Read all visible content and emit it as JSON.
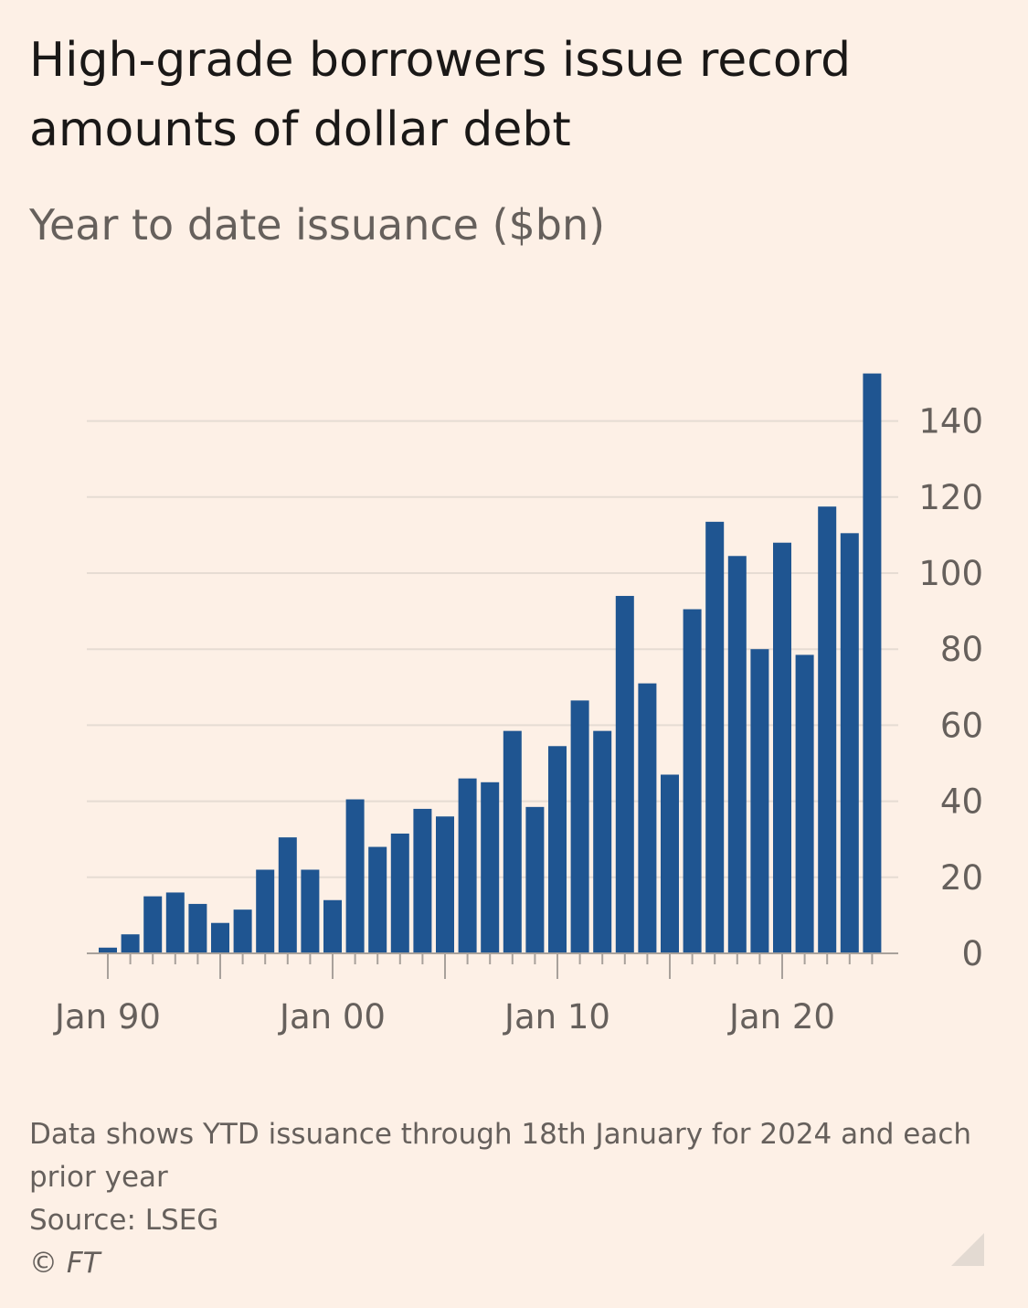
{
  "header": {
    "title": "High-grade borrowers issue record amounts of dollar debt",
    "subtitle": "Year to date issuance ($bn)"
  },
  "footer": {
    "note": "Data shows YTD issuance through 18th January for 2024 and each prior year",
    "source": "Source: LSEG",
    "copyright": "© FT"
  },
  "colors": {
    "bar": "#1f5591",
    "gridline": "#e6dcd3",
    "axis": "#a8a19b",
    "background": "#fdf0e6"
  },
  "chart_data": {
    "type": "bar",
    "title": "High-grade borrowers issue record amounts of dollar debt",
    "subtitle": "Year to date issuance ($bn)",
    "x": [
      1990,
      1991,
      1992,
      1993,
      1994,
      1995,
      1996,
      1997,
      1998,
      1999,
      2000,
      2001,
      2002,
      2003,
      2004,
      2005,
      2006,
      2007,
      2008,
      2009,
      2010,
      2011,
      2012,
      2013,
      2014,
      2015,
      2016,
      2017,
      2018,
      2019,
      2020,
      2021,
      2022,
      2023,
      2024
    ],
    "values": [
      1.5,
      5,
      15,
      16,
      13,
      8,
      11.5,
      22,
      30.5,
      22,
      14,
      40.5,
      28,
      31.5,
      38,
      36,
      46,
      45,
      58.5,
      38.5,
      54.5,
      66.5,
      58.5,
      94,
      71,
      47,
      90.5,
      113.5,
      104.5,
      80,
      108,
      78.5,
      117.5,
      110.5,
      152.5
    ],
    "xtick_labels": [
      {
        "year": 1990,
        "label": "Jan 90"
      },
      {
        "year": 2000,
        "label": "Jan 00"
      },
      {
        "year": 2010,
        "label": "Jan 10"
      },
      {
        "year": 2020,
        "label": "Jan 20"
      }
    ],
    "yticks": [
      0,
      20,
      40,
      60,
      80,
      100,
      120,
      140
    ],
    "ylim": [
      0,
      152.5
    ],
    "y_axis_position": "right",
    "grid": true
  }
}
